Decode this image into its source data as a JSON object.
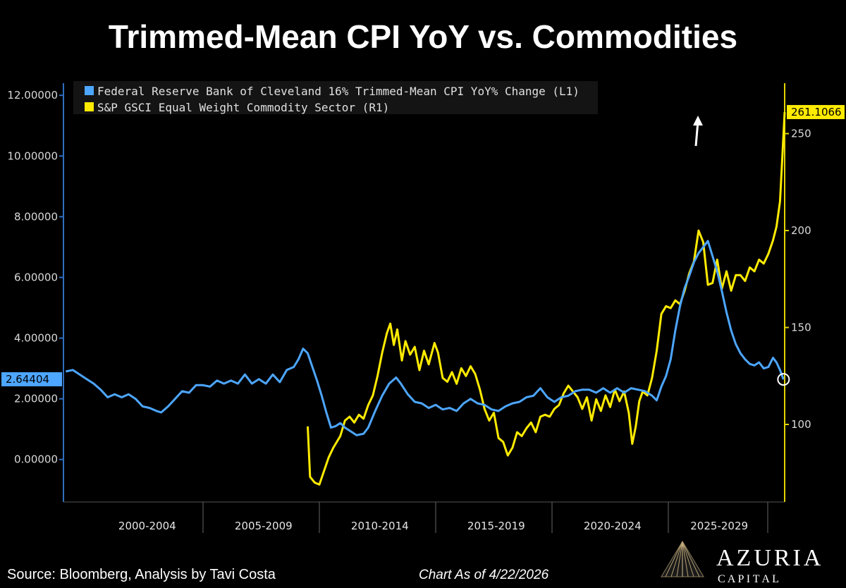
{
  "title": "Trimmed-Mean CPI YoY vs. Commodities",
  "colors": {
    "blue": "#4da6ff",
    "yellow": "#ffeb00",
    "axis": "#2f6fbf",
    "axis_right": "#e3d400",
    "background": "#000000"
  },
  "chart_data": {
    "type": "line",
    "title": "Trimmed-Mean CPI YoY vs. Commodities",
    "x_range": [
      1998.9,
      2029.9
    ],
    "x_category_labels": [
      "2000-2004",
      "2005-2009",
      "2010-2014",
      "2015-2019",
      "2020-2024",
      "2025-2029"
    ],
    "y_left": {
      "ticks": [
        "12.00000",
        "10.00000",
        "8.00000",
        "6.00000",
        "4.00000",
        "2.00000",
        "0.00000"
      ],
      "tick_values": [
        12,
        10,
        8,
        6,
        4,
        2,
        0
      ],
      "range": [
        -1.4,
        12.4
      ],
      "last_value_label": "2.64404",
      "last_value": 2.64404
    },
    "y_right": {
      "ticks": [
        "250",
        "200",
        "150",
        "100"
      ],
      "tick_values": [
        250,
        200,
        150,
        100
      ],
      "range": [
        60,
        276
      ],
      "last_value_label": "261.1066",
      "last_value": 261.1066
    },
    "series": [
      {
        "name": "Federal Reserve Bank of Cleveland 16% Trimmed-Mean CPI YoY% Change (L1)",
        "axis": "left",
        "color": "#4da6ff",
        "points": [
          [
            1999.0,
            2.9
          ],
          [
            1999.3,
            2.95
          ],
          [
            1999.6,
            2.8
          ],
          [
            1999.9,
            2.65
          ],
          [
            2000.2,
            2.5
          ],
          [
            2000.5,
            2.3
          ],
          [
            2000.8,
            2.05
          ],
          [
            2001.1,
            2.15
          ],
          [
            2001.4,
            2.05
          ],
          [
            2001.7,
            2.15
          ],
          [
            2002.0,
            2.0
          ],
          [
            2002.3,
            1.75
          ],
          [
            2002.6,
            1.7
          ],
          [
            2002.9,
            1.6
          ],
          [
            2003.1,
            1.55
          ],
          [
            2003.4,
            1.75
          ],
          [
            2003.7,
            2.0
          ],
          [
            2004.0,
            2.25
          ],
          [
            2004.3,
            2.2
          ],
          [
            2004.6,
            2.45
          ],
          [
            2004.9,
            2.45
          ],
          [
            2005.2,
            2.4
          ],
          [
            2005.5,
            2.6
          ],
          [
            2005.8,
            2.5
          ],
          [
            2006.1,
            2.6
          ],
          [
            2006.4,
            2.5
          ],
          [
            2006.7,
            2.8
          ],
          [
            2007.0,
            2.5
          ],
          [
            2007.3,
            2.65
          ],
          [
            2007.6,
            2.5
          ],
          [
            2007.9,
            2.8
          ],
          [
            2008.2,
            2.55
          ],
          [
            2008.5,
            2.95
          ],
          [
            2008.8,
            3.05
          ],
          [
            2009.0,
            3.3
          ],
          [
            2009.2,
            3.65
          ],
          [
            2009.4,
            3.5
          ],
          [
            2009.6,
            3.05
          ],
          [
            2009.8,
            2.6
          ],
          [
            2010.0,
            2.1
          ],
          [
            2010.2,
            1.55
          ],
          [
            2010.4,
            1.05
          ],
          [
            2010.6,
            1.1
          ],
          [
            2010.8,
            1.2
          ],
          [
            2011.0,
            1.05
          ],
          [
            2011.2,
            0.95
          ],
          [
            2011.5,
            0.8
          ],
          [
            2011.8,
            0.85
          ],
          [
            2012.0,
            1.05
          ],
          [
            2012.3,
            1.6
          ],
          [
            2012.6,
            2.1
          ],
          [
            2012.9,
            2.5
          ],
          [
            2013.2,
            2.7
          ],
          [
            2013.4,
            2.5
          ],
          [
            2013.7,
            2.15
          ],
          [
            2014.0,
            1.9
          ],
          [
            2014.3,
            1.85
          ],
          [
            2014.6,
            1.7
          ],
          [
            2014.9,
            1.8
          ],
          [
            2015.2,
            1.65
          ],
          [
            2015.5,
            1.7
          ],
          [
            2015.8,
            1.6
          ],
          [
            2016.1,
            1.85
          ],
          [
            2016.4,
            2.0
          ],
          [
            2016.7,
            1.85
          ],
          [
            2017.0,
            1.8
          ],
          [
            2017.3,
            1.65
          ],
          [
            2017.6,
            1.6
          ],
          [
            2017.9,
            1.75
          ],
          [
            2018.2,
            1.85
          ],
          [
            2018.5,
            1.9
          ],
          [
            2018.8,
            2.05
          ],
          [
            2019.1,
            2.1
          ],
          [
            2019.4,
            2.35
          ],
          [
            2019.7,
            2.05
          ],
          [
            2020.0,
            1.9
          ],
          [
            2020.3,
            2.05
          ],
          [
            2020.6,
            2.1
          ],
          [
            2020.9,
            2.25
          ],
          [
            2021.2,
            2.3
          ],
          [
            2021.5,
            2.3
          ],
          [
            2021.8,
            2.2
          ],
          [
            2022.1,
            2.35
          ],
          [
            2022.4,
            2.2
          ],
          [
            2022.7,
            2.35
          ],
          [
            2023.0,
            2.2
          ],
          [
            2023.3,
            2.35
          ],
          [
            2023.6,
            2.3
          ],
          [
            2023.9,
            2.25
          ],
          [
            2024.2,
            2.1
          ],
          [
            2024.4,
            1.95
          ],
          [
            2024.6,
            2.4
          ],
          [
            2024.8,
            2.75
          ],
          [
            2025.0,
            3.3
          ],
          [
            2025.2,
            4.25
          ],
          [
            2025.4,
            5.05
          ],
          [
            2025.6,
            5.65
          ],
          [
            2025.8,
            6.05
          ],
          [
            2026.0,
            6.5
          ],
          [
            2026.2,
            6.8
          ],
          [
            2026.4,
            7.0
          ],
          [
            2026.6,
            7.2
          ],
          [
            2026.8,
            6.7
          ],
          [
            2027.0,
            6.2
          ],
          [
            2027.2,
            5.55
          ],
          [
            2027.4,
            4.85
          ],
          [
            2027.6,
            4.25
          ],
          [
            2027.8,
            3.8
          ],
          [
            2028.0,
            3.5
          ],
          [
            2028.2,
            3.3
          ],
          [
            2028.4,
            3.15
          ],
          [
            2028.6,
            3.1
          ],
          [
            2028.8,
            3.2
          ],
          [
            2029.0,
            3.0
          ],
          [
            2029.2,
            3.05
          ],
          [
            2029.4,
            3.35
          ],
          [
            2029.55,
            3.2
          ],
          [
            2029.7,
            2.95
          ],
          [
            2029.85,
            2.64
          ]
        ]
      },
      {
        "name": "S&P GSCI Equal Weight Commodity Sector (R1)",
        "axis": "right",
        "color": "#ffeb00",
        "points": [
          [
            2009.4,
            99
          ],
          [
            2009.5,
            73
          ],
          [
            2009.7,
            70
          ],
          [
            2009.9,
            69
          ],
          [
            2010.1,
            76
          ],
          [
            2010.3,
            83
          ],
          [
            2010.5,
            88
          ],
          [
            2010.8,
            94
          ],
          [
            2011.0,
            102
          ],
          [
            2011.2,
            104
          ],
          [
            2011.4,
            101
          ],
          [
            2011.6,
            105
          ],
          [
            2011.8,
            103
          ],
          [
            2012.0,
            110
          ],
          [
            2012.2,
            115
          ],
          [
            2012.4,
            125
          ],
          [
            2012.6,
            137
          ],
          [
            2012.8,
            147
          ],
          [
            2012.95,
            152
          ],
          [
            2013.1,
            141
          ],
          [
            2013.25,
            149
          ],
          [
            2013.45,
            133
          ],
          [
            2013.6,
            143
          ],
          [
            2013.8,
            136
          ],
          [
            2014.0,
            140
          ],
          [
            2014.2,
            128
          ],
          [
            2014.4,
            138
          ],
          [
            2014.6,
            131
          ],
          [
            2014.85,
            142
          ],
          [
            2015.0,
            137
          ],
          [
            2015.2,
            124
          ],
          [
            2015.4,
            122
          ],
          [
            2015.6,
            127
          ],
          [
            2015.8,
            121
          ],
          [
            2016.0,
            129
          ],
          [
            2016.2,
            125
          ],
          [
            2016.4,
            130
          ],
          [
            2016.6,
            126
          ],
          [
            2016.8,
            118
          ],
          [
            2017.0,
            108
          ],
          [
            2017.2,
            102
          ],
          [
            2017.4,
            106
          ],
          [
            2017.6,
            93
          ],
          [
            2017.8,
            91
          ],
          [
            2018.0,
            84
          ],
          [
            2018.2,
            88
          ],
          [
            2018.4,
            96
          ],
          [
            2018.6,
            94
          ],
          [
            2018.8,
            98
          ],
          [
            2019.0,
            101
          ],
          [
            2019.2,
            96
          ],
          [
            2019.4,
            104
          ],
          [
            2019.6,
            105
          ],
          [
            2019.8,
            104
          ],
          [
            2020.0,
            108
          ],
          [
            2020.2,
            110
          ],
          [
            2020.4,
            116
          ],
          [
            2020.6,
            120
          ],
          [
            2020.8,
            117
          ],
          [
            2021.0,
            114
          ],
          [
            2021.2,
            108
          ],
          [
            2021.4,
            114
          ],
          [
            2021.6,
            102
          ],
          [
            2021.8,
            113
          ],
          [
            2022.0,
            107
          ],
          [
            2022.2,
            115
          ],
          [
            2022.4,
            109
          ],
          [
            2022.6,
            118
          ],
          [
            2022.8,
            112
          ],
          [
            2023.0,
            117
          ],
          [
            2023.2,
            106
          ],
          [
            2023.35,
            90
          ],
          [
            2023.5,
            99
          ],
          [
            2023.65,
            112
          ],
          [
            2023.8,
            117
          ],
          [
            2024.0,
            115
          ],
          [
            2024.2,
            124
          ],
          [
            2024.4,
            138
          ],
          [
            2024.6,
            157
          ],
          [
            2024.8,
            161
          ],
          [
            2025.0,
            160
          ],
          [
            2025.2,
            164
          ],
          [
            2025.4,
            162
          ],
          [
            2025.6,
            169
          ],
          [
            2025.8,
            178
          ],
          [
            2026.0,
            184
          ],
          [
            2026.2,
            200
          ],
          [
            2026.4,
            194
          ],
          [
            2026.6,
            172
          ],
          [
            2026.8,
            173
          ],
          [
            2027.0,
            185
          ],
          [
            2027.2,
            170
          ],
          [
            2027.4,
            179
          ],
          [
            2027.6,
            169
          ],
          [
            2027.8,
            177
          ],
          [
            2028.0,
            177
          ],
          [
            2028.2,
            174
          ],
          [
            2028.4,
            181
          ],
          [
            2028.6,
            179
          ],
          [
            2028.8,
            185
          ],
          [
            2029.0,
            183
          ],
          [
            2029.2,
            188
          ],
          [
            2029.4,
            195
          ],
          [
            2029.55,
            202
          ],
          [
            2029.7,
            215
          ],
          [
            2029.8,
            238
          ],
          [
            2029.9,
            261.1
          ]
        ]
      }
    ],
    "annotations": [
      "up-arrow",
      "circle-at-last-cpi-point"
    ]
  },
  "footer": {
    "source": "Source: Bloomberg, Analysis by Tavi Costa",
    "date": "Chart As of 4/22/2026"
  },
  "logo": {
    "name": "AZURIA",
    "sub": "C A P I T A L"
  }
}
